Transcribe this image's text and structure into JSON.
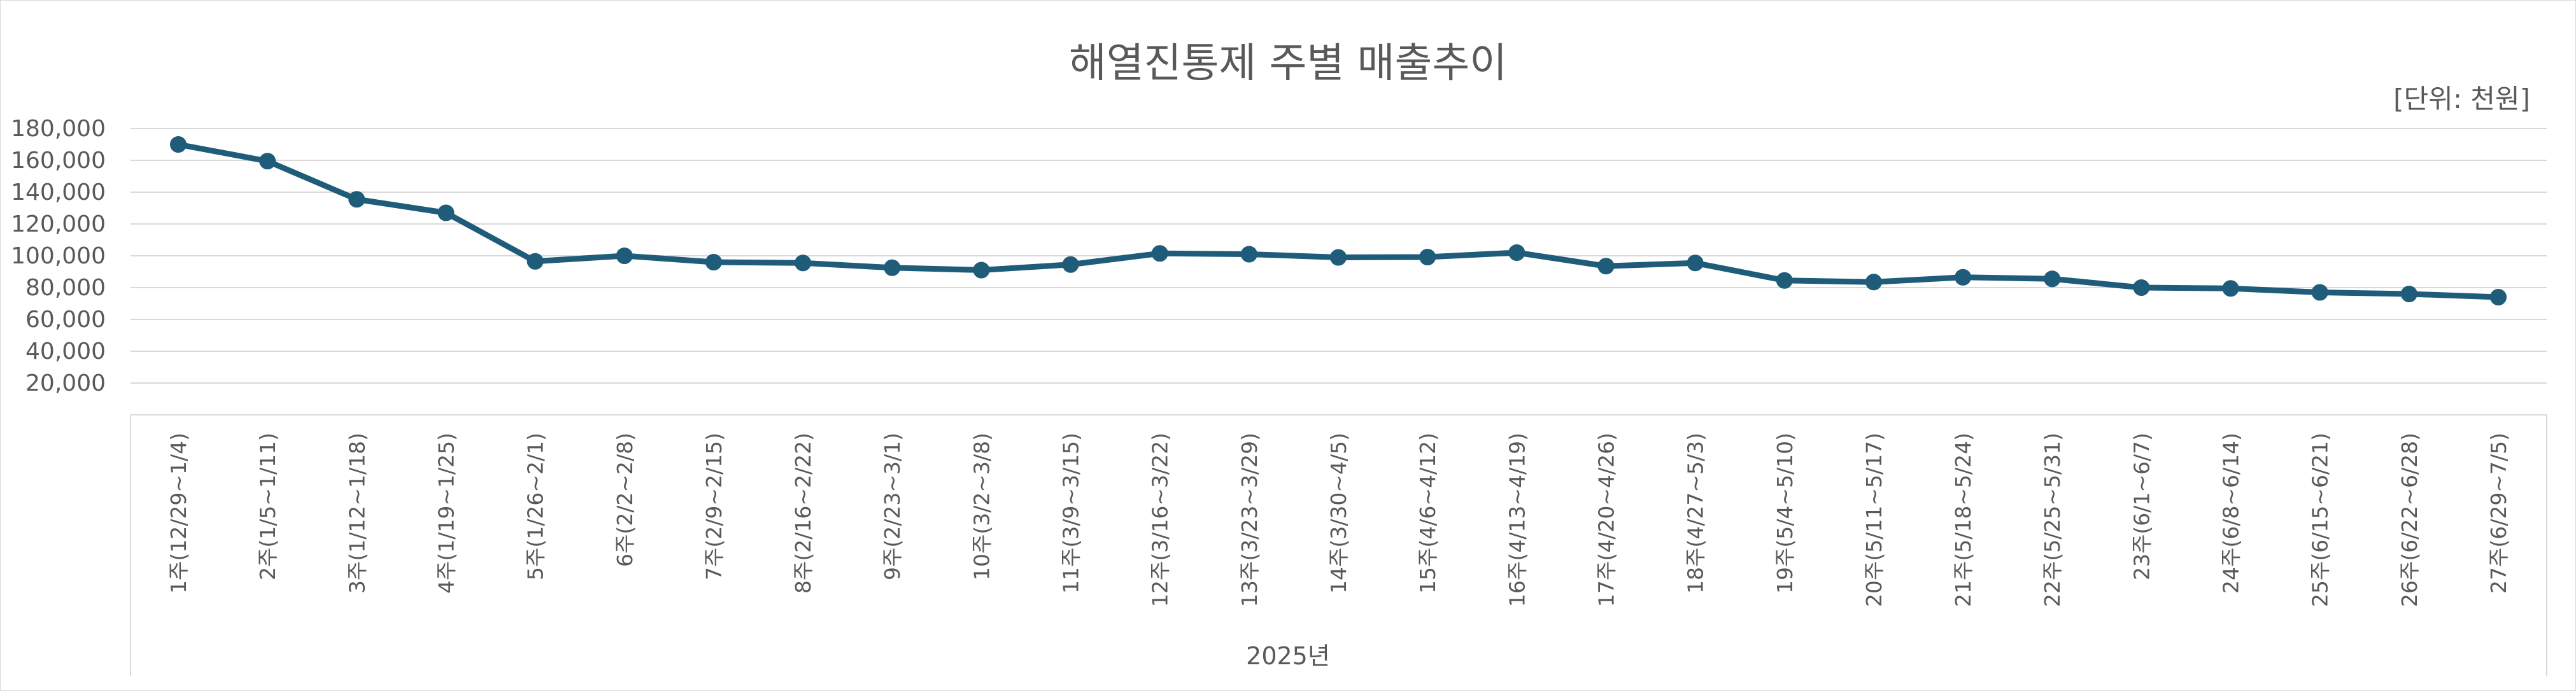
{
  "chart_data": {
    "type": "line",
    "title": "해열진통제 주별 매출추이",
    "unit_label": "[단위: 천원]",
    "xlabel": "2025년",
    "ylabel": "",
    "ylim": [
      0,
      180000
    ],
    "yticks": [
      20000,
      40000,
      60000,
      80000,
      100000,
      120000,
      140000,
      160000,
      180000
    ],
    "ytick_labels": [
      "20,000",
      "40,000",
      "60,000",
      "80,000",
      "100,000",
      "120,000",
      "140,000",
      "160,000",
      "180,000"
    ],
    "grid": true,
    "legend": "none",
    "color": "#1f5c7a",
    "categories": [
      "1주(12/29~1/4)",
      "2주(1/5~1/11)",
      "3주(1/12~1/18)",
      "4주(1/19~1/25)",
      "5주(1/26~2/1)",
      "6주(2/2~2/8)",
      "7주(2/9~2/15)",
      "8주(2/16~2/22)",
      "9주(2/23~3/1)",
      "10주(3/2~3/8)",
      "11주(3/9~3/15)",
      "12주(3/16~3/22)",
      "13주(3/23~3/29)",
      "14주(3/30~4/5)",
      "15주(4/6~4/12)",
      "16주(4/13~4/19)",
      "17주(4/20~4/26)",
      "18주(4/27~5/3)",
      "19주(5/4~5/10)",
      "20주(5/11~5/17)",
      "21주(5/18~5/24)",
      "22주(5/25~5/31)",
      "23주(6/1~6/7)",
      "24주(6/8~6/14)",
      "25주(6/15~6/21)",
      "26주(6/22~6/28)",
      "27주(6/29~7/5)"
    ],
    "series": [
      {
        "values": [
          170000,
          159500,
          135500,
          127000,
          96500,
          100000,
          96000,
          95500,
          92500,
          91000,
          94500,
          101500,
          101000,
          99000,
          99200,
          102000,
          93500,
          95500,
          84500,
          83500,
          86500,
          85500,
          80000,
          79500,
          77000,
          76000,
          74000
        ]
      }
    ]
  }
}
